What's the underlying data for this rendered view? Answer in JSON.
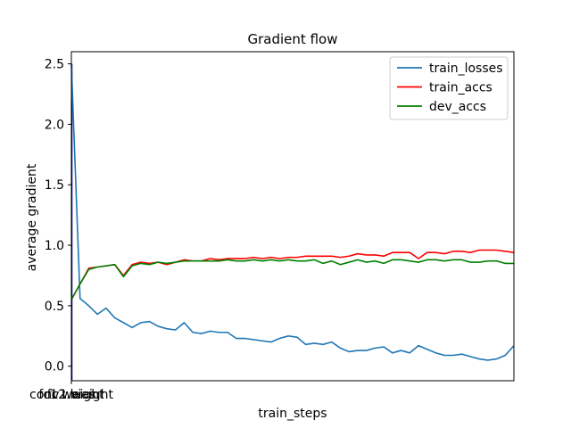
{
  "chart_data": {
    "type": "line",
    "title": "Gradient flow",
    "xlabel": "train_steps",
    "ylabel": "average gradient",
    "x_tick_labels": [
      "conv1.weight",
      "fc2.bias",
      "fc1.weight"
    ],
    "ylim": [
      -0.12,
      2.6
    ],
    "y_ticks": [
      0.0,
      0.5,
      1.0,
      1.5,
      2.0,
      2.5
    ],
    "grid": false,
    "legend_position": "top-right",
    "series": [
      {
        "name": "train_losses",
        "color": "#1f77b4",
        "values": [
          2.5,
          0.56,
          0.5,
          0.43,
          0.48,
          0.4,
          0.36,
          0.32,
          0.36,
          0.37,
          0.33,
          0.31,
          0.3,
          0.36,
          0.28,
          0.27,
          0.29,
          0.28,
          0.28,
          0.23,
          0.23,
          0.22,
          0.21,
          0.2,
          0.23,
          0.25,
          0.24,
          0.18,
          0.19,
          0.18,
          0.2,
          0.15,
          0.12,
          0.13,
          0.13,
          0.15,
          0.16,
          0.11,
          0.13,
          0.11,
          0.17,
          0.14,
          0.11,
          0.09,
          0.09,
          0.1,
          0.08,
          0.06,
          0.05,
          0.06,
          0.09,
          0.17
        ]
      },
      {
        "name": "train_accs",
        "color": "#ff0000",
        "values": [
          0.55,
          0.68,
          0.81,
          0.82,
          0.83,
          0.84,
          0.75,
          0.84,
          0.86,
          0.85,
          0.86,
          0.84,
          0.86,
          0.88,
          0.87,
          0.87,
          0.89,
          0.88,
          0.89,
          0.89,
          0.89,
          0.9,
          0.89,
          0.9,
          0.89,
          0.9,
          0.9,
          0.91,
          0.91,
          0.91,
          0.91,
          0.9,
          0.91,
          0.93,
          0.92,
          0.92,
          0.91,
          0.94,
          0.94,
          0.94,
          0.89,
          0.94,
          0.94,
          0.93,
          0.95,
          0.95,
          0.94,
          0.96,
          0.96,
          0.96,
          0.95,
          0.94
        ]
      },
      {
        "name": "dev_accs",
        "color": "#008000",
        "values": [
          0.55,
          0.68,
          0.8,
          0.82,
          0.83,
          0.84,
          0.74,
          0.83,
          0.85,
          0.84,
          0.86,
          0.85,
          0.86,
          0.87,
          0.87,
          0.87,
          0.87,
          0.87,
          0.88,
          0.87,
          0.87,
          0.88,
          0.87,
          0.88,
          0.87,
          0.88,
          0.87,
          0.87,
          0.88,
          0.85,
          0.87,
          0.84,
          0.86,
          0.88,
          0.86,
          0.87,
          0.85,
          0.88,
          0.88,
          0.87,
          0.86,
          0.88,
          0.88,
          0.87,
          0.88,
          0.88,
          0.86,
          0.86,
          0.87,
          0.87,
          0.85,
          0.85
        ]
      }
    ]
  }
}
